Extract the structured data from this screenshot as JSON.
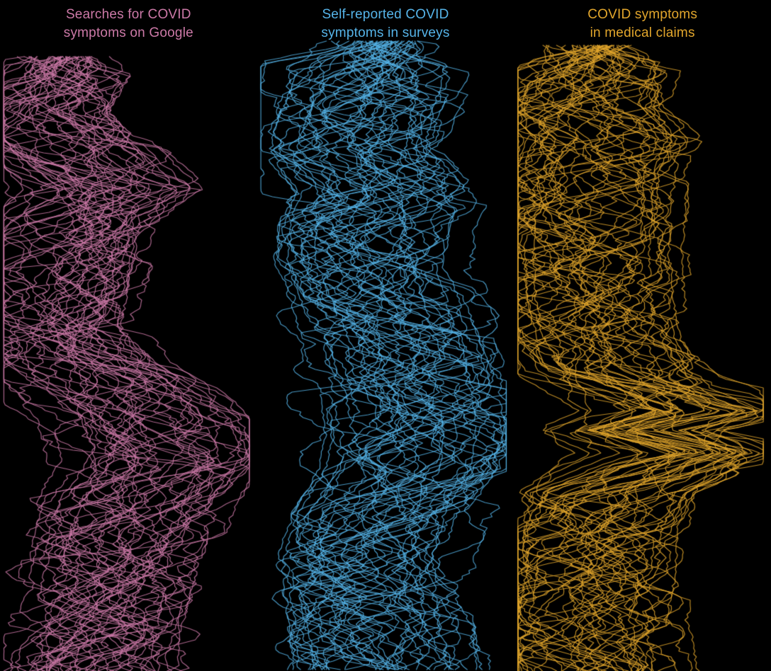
{
  "figure": {
    "background": "#000000"
  },
  "chart_data": {
    "type": "line",
    "layout": "three vertical small multiples; time flows downward, signal magnitude on the horizontal axis; many overlapping noisy series per panel",
    "axes_visible": false,
    "legend": null,
    "panels": [
      {
        "title": "Searches for COVID symptoms on Google",
        "title_line1": "Searches for COVID",
        "title_line2": "symptoms on Google",
        "color": "#cc79a7",
        "n_series": 46,
        "backbone": [
          [
            0.0,
            0.24
          ],
          [
            0.04,
            0.2
          ],
          [
            0.09,
            0.13
          ],
          [
            0.13,
            0.22
          ],
          [
            0.18,
            0.33
          ],
          [
            0.215,
            0.42
          ],
          [
            0.25,
            0.32
          ],
          [
            0.29,
            0.24
          ],
          [
            0.36,
            0.2
          ],
          [
            0.44,
            0.17
          ],
          [
            0.5,
            0.28
          ],
          [
            0.545,
            0.42
          ],
          [
            0.59,
            0.54
          ],
          [
            0.655,
            0.58
          ],
          [
            0.71,
            0.49
          ],
          [
            0.78,
            0.44
          ],
          [
            0.85,
            0.4
          ],
          [
            0.92,
            0.36
          ],
          [
            1.0,
            0.36
          ]
        ]
      },
      {
        "title": "Self-reported COVID symptoms in surveys",
        "title_line1": "Self-reported COVID",
        "title_line2": "symptoms in surveys",
        "color": "#56b4e9",
        "n_series": 46,
        "backbone": [
          [
            0.0,
            0.46
          ],
          [
            0.06,
            0.42
          ],
          [
            0.12,
            0.36
          ],
          [
            0.17,
            0.33
          ],
          [
            0.235,
            0.46
          ],
          [
            0.3,
            0.4
          ],
          [
            0.35,
            0.4
          ],
          [
            0.43,
            0.47
          ],
          [
            0.5,
            0.53
          ],
          [
            0.565,
            0.58
          ],
          [
            0.63,
            0.6
          ],
          [
            0.68,
            0.57
          ],
          [
            0.75,
            0.46
          ],
          [
            0.82,
            0.4
          ],
          [
            0.9,
            0.44
          ],
          [
            1.0,
            0.47
          ]
        ]
      },
      {
        "title": "COVID symptoms in medical claims",
        "title_line1": "COVID symptoms",
        "title_line2": "in medical claims",
        "color": "#e2a62c",
        "n_series": 46,
        "backbone": [
          [
            0.0,
            0.3
          ],
          [
            0.05,
            0.26
          ],
          [
            0.1,
            0.22
          ],
          [
            0.15,
            0.33
          ],
          [
            0.2,
            0.28
          ],
          [
            0.26,
            0.27
          ],
          [
            0.33,
            0.26
          ],
          [
            0.41,
            0.27
          ],
          [
            0.47,
            0.3
          ],
          [
            0.52,
            0.38
          ],
          [
            0.565,
            0.62
          ],
          [
            0.585,
            0.72
          ],
          [
            0.615,
            0.5
          ],
          [
            0.65,
            0.76
          ],
          [
            0.675,
            0.6
          ],
          [
            0.715,
            0.38
          ],
          [
            0.77,
            0.31
          ],
          [
            0.84,
            0.3
          ],
          [
            0.92,
            0.27
          ],
          [
            1.0,
            0.3
          ]
        ]
      }
    ]
  }
}
